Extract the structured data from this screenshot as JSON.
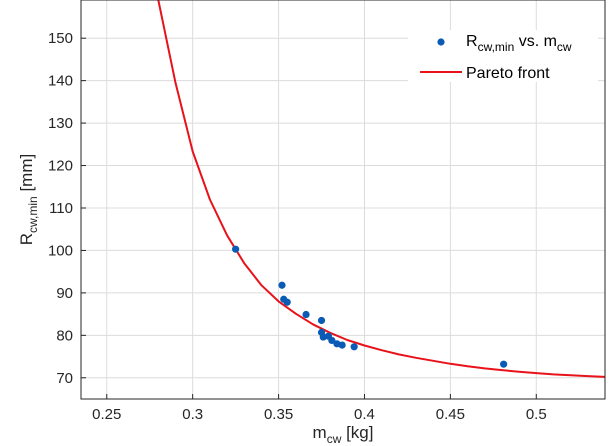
{
  "chart_data": {
    "type": "scatter",
    "xlabel": {
      "base": "m",
      "sub": "cw",
      "unit": " [kg]"
    },
    "ylabel": {
      "base": "R",
      "sub": "cw,min",
      "unit": " [mm]"
    },
    "xlim": [
      0.235,
      0.54
    ],
    "ylim": [
      65,
      159
    ],
    "xticks": [
      0.25,
      0.3,
      0.35,
      0.4,
      0.45,
      0.5
    ],
    "xtick_labels": [
      "0.25",
      "0.3",
      "0.35",
      "0.4",
      "0.45",
      "0.5"
    ],
    "yticks": [
      70,
      80,
      90,
      100,
      110,
      120,
      130,
      140,
      150
    ],
    "ytick_labels": [
      "70",
      "80",
      "90",
      "100",
      "110",
      "120",
      "130",
      "140",
      "150"
    ],
    "grid": true,
    "legend_position": "top-right",
    "series": [
      {
        "name": {
          "a": "R",
          "a_sub": "cw,min",
          "mid": " vs. m",
          "b_sub": "cw"
        },
        "kind": "scatter",
        "color": "#0a5bb5",
        "points": [
          [
            0.325,
            100.3
          ],
          [
            0.352,
            91.8
          ],
          [
            0.353,
            88.5
          ],
          [
            0.355,
            87.8
          ],
          [
            0.366,
            84.9
          ],
          [
            0.375,
            83.5
          ],
          [
            0.375,
            80.7
          ],
          [
            0.376,
            79.6
          ],
          [
            0.379,
            79.8
          ],
          [
            0.381,
            78.8
          ],
          [
            0.384,
            78.0
          ],
          [
            0.387,
            77.7
          ],
          [
            0.394,
            77.3
          ],
          [
            0.481,
            73.2
          ]
        ]
      },
      {
        "name": "Pareto front",
        "kind": "line",
        "color": "#e8121a",
        "points": [
          [
            0.28,
            159
          ],
          [
            0.29,
            139.5
          ],
          [
            0.3,
            123.3
          ],
          [
            0.31,
            112.0
          ],
          [
            0.32,
            103.6
          ],
          [
            0.33,
            97.0
          ],
          [
            0.34,
            91.8
          ],
          [
            0.35,
            88.0
          ],
          [
            0.36,
            85.1
          ],
          [
            0.37,
            82.6
          ],
          [
            0.38,
            80.6
          ],
          [
            0.39,
            78.9
          ],
          [
            0.4,
            77.6
          ],
          [
            0.41,
            76.5
          ],
          [
            0.42,
            75.5
          ],
          [
            0.43,
            74.7
          ],
          [
            0.44,
            74.0
          ],
          [
            0.45,
            73.3
          ],
          [
            0.46,
            72.7
          ],
          [
            0.47,
            72.2
          ],
          [
            0.48,
            71.8
          ],
          [
            0.49,
            71.4
          ],
          [
            0.5,
            71.1
          ],
          [
            0.51,
            70.8
          ],
          [
            0.52,
            70.6
          ],
          [
            0.53,
            70.4
          ],
          [
            0.54,
            70.2
          ]
        ]
      }
    ]
  }
}
